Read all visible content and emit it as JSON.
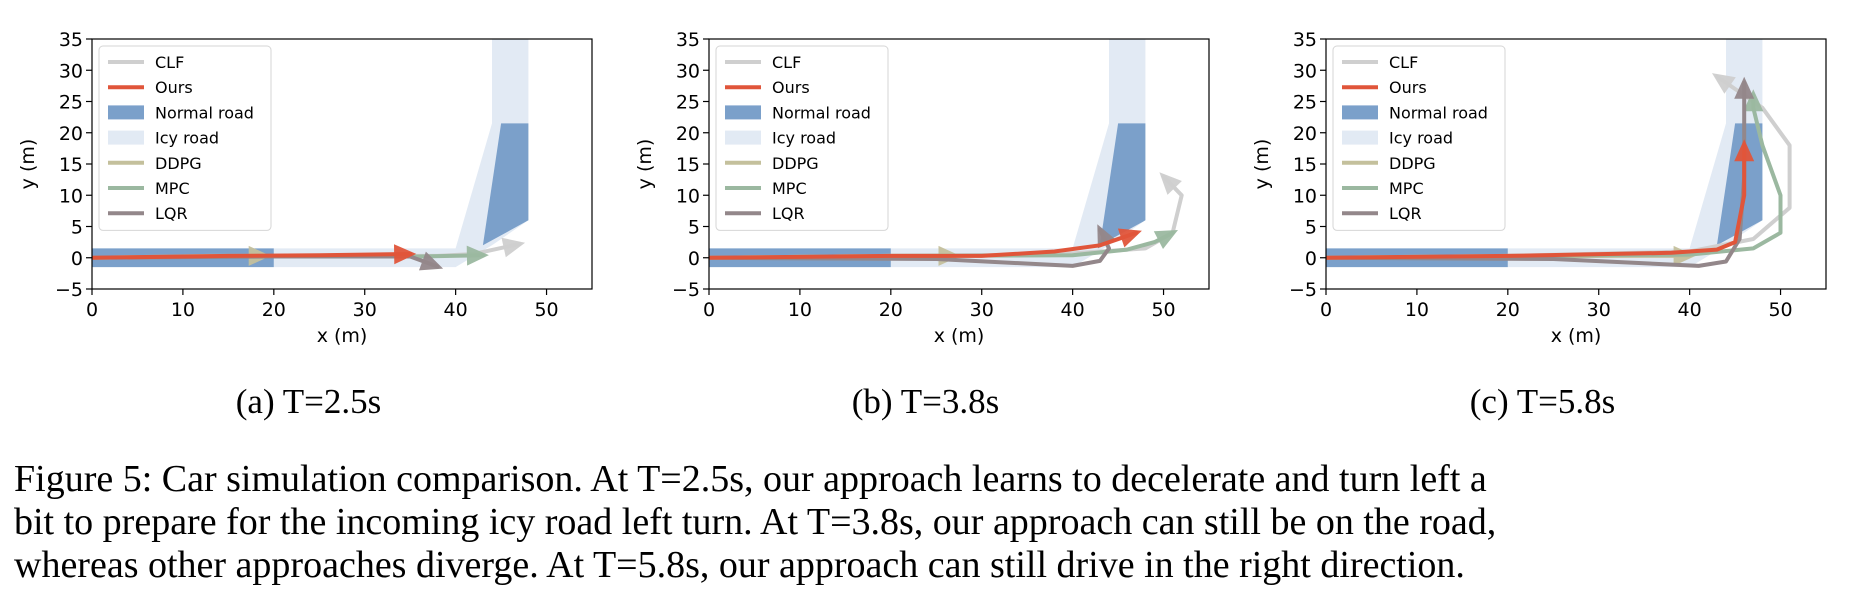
{
  "figure": {
    "caption_lines": [
      "Figure 5: Car simulation comparison. At T=2.5s, our approach learns to decelerate and turn left a",
      "bit to prepare for the incoming icy road left turn. At T=3.8s, our approach can still be on the road,",
      "whereas other approaches diverge. At T=5.8s, our approach can still drive in the right direction."
    ]
  },
  "legend": [
    {
      "label": "CLF",
      "kind": "line",
      "color": "#cfcfcf"
    },
    {
      "label": "Ours",
      "kind": "line",
      "color": "#e0553a"
    },
    {
      "label": "Normal road",
      "kind": "patch",
      "color": "#7ba0ca"
    },
    {
      "label": "Icy road",
      "kind": "patch",
      "color": "#e2eaf4"
    },
    {
      "label": "DDPG",
      "kind": "line",
      "color": "#c4c09c"
    },
    {
      "label": "MPC",
      "kind": "line",
      "color": "#9bb8a0"
    },
    {
      "label": "LQR",
      "kind": "line",
      "color": "#93878a"
    }
  ],
  "chart_data": [
    {
      "type": "line",
      "subcaption": "(a) T=2.5s",
      "xlabel": "x (m)",
      "ylabel": "y (m)",
      "xlim": [
        0,
        55
      ],
      "ylim": [
        -5,
        35
      ],
      "xticks": [
        "0",
        "10",
        "20",
        "30",
        "40",
        "50"
      ],
      "yticks": [
        "−5",
        "0",
        "5",
        "10",
        "15",
        "20",
        "25",
        "30",
        "35"
      ],
      "road": {
        "normal": [
          [
            [
              0,
              -1.5
            ],
            [
              20,
              -1.5
            ],
            [
              20,
              1.5
            ],
            [
              0,
              1.5
            ]
          ],
          [
            [
              43,
              2
            ],
            [
              48,
              6
            ],
            [
              48,
              21.5
            ],
            [
              45,
              21.5
            ]
          ]
        ],
        "icy": [
          [
            [
              20,
              -1.5
            ],
            [
              40,
              -1.5
            ],
            [
              44,
              2
            ],
            [
              48,
              6
            ],
            [
              48,
              35
            ],
            [
              44,
              35
            ],
            [
              44,
              21.5
            ],
            [
              40,
              1.5
            ],
            [
              20,
              1.5
            ]
          ]
        ]
      },
      "series": [
        {
          "name": "CLF",
          "points": [
            [
              0,
              0
            ],
            [
              20,
              0.3
            ],
            [
              38,
              0.3
            ],
            [
              42,
              0.6
            ],
            [
              47,
              2.2
            ]
          ]
        },
        {
          "name": "Ours",
          "points": [
            [
              0,
              0
            ],
            [
              15,
              0.3
            ],
            [
              25,
              0.4
            ],
            [
              35,
              0.6
            ]
          ]
        },
        {
          "name": "DDPG",
          "points": [
            [
              0,
              0
            ],
            [
              13,
              0.3
            ],
            [
              19,
              0.3
            ]
          ]
        },
        {
          "name": "MPC",
          "points": [
            [
              0,
              0
            ],
            [
              20,
              0.3
            ],
            [
              36,
              0.2
            ],
            [
              43,
              0.4
            ]
          ]
        },
        {
          "name": "LQR",
          "points": [
            [
              0,
              0
            ],
            [
              20,
              0.2
            ],
            [
              35,
              0.2
            ],
            [
              38,
              -1.4
            ]
          ]
        }
      ]
    },
    {
      "type": "line",
      "subcaption": "(b) T=3.8s",
      "xlabel": "x (m)",
      "ylabel": "y (m)",
      "xlim": [
        0,
        55
      ],
      "ylim": [
        -5,
        35
      ],
      "xticks": [
        "0",
        "10",
        "20",
        "30",
        "40",
        "50"
      ],
      "yticks": [
        "−5",
        "0",
        "5",
        "10",
        "15",
        "20",
        "25",
        "30",
        "35"
      ],
      "road": {
        "normal": [
          [
            [
              0,
              -1.5
            ],
            [
              20,
              -1.5
            ],
            [
              20,
              1.5
            ],
            [
              0,
              1.5
            ]
          ],
          [
            [
              43,
              2
            ],
            [
              48,
              6
            ],
            [
              48,
              21.5
            ],
            [
              45,
              21.5
            ]
          ]
        ],
        "icy": [
          [
            [
              20,
              -1.5
            ],
            [
              40,
              -1.5
            ],
            [
              44,
              2
            ],
            [
              48,
              6
            ],
            [
              48,
              35
            ],
            [
              44,
              35
            ],
            [
              44,
              21.5
            ],
            [
              40,
              1.5
            ],
            [
              20,
              1.5
            ]
          ]
        ]
      },
      "series": [
        {
          "name": "CLF",
          "points": [
            [
              0,
              0
            ],
            [
              20,
              0.3
            ],
            [
              38,
              0.5
            ],
            [
              48,
              1.5
            ],
            [
              51,
              4
            ],
            [
              52,
              10
            ],
            [
              50,
              13
            ]
          ]
        },
        {
          "name": "Ours",
          "points": [
            [
              0,
              0
            ],
            [
              20,
              0.3
            ],
            [
              30,
              0.3
            ],
            [
              38,
              1
            ],
            [
              43,
              2
            ],
            [
              47,
              4
            ]
          ]
        },
        {
          "name": "DDPG",
          "points": [
            [
              0,
              0
            ],
            [
              20,
              0.3
            ],
            [
              27,
              0.3
            ]
          ]
        },
        {
          "name": "MPC",
          "points": [
            [
              0,
              0
            ],
            [
              20,
              0.3
            ],
            [
              40,
              0.4
            ],
            [
              46,
              1.3
            ],
            [
              49,
              2.5
            ],
            [
              51,
              4
            ]
          ]
        },
        {
          "name": "LQR",
          "points": [
            [
              0,
              0
            ],
            [
              25,
              -0.2
            ],
            [
              40,
              -1.3
            ],
            [
              43,
              -0.5
            ],
            [
              44,
              1.5
            ],
            [
              43,
              4.5
            ]
          ]
        }
      ]
    },
    {
      "type": "line",
      "subcaption": "(c) T=5.8s",
      "xlabel": "x (m)",
      "ylabel": "y (m)",
      "xlim": [
        0,
        55
      ],
      "ylim": [
        -5,
        35
      ],
      "xticks": [
        "0",
        "10",
        "20",
        "30",
        "40",
        "50"
      ],
      "yticks": [
        "−5",
        "0",
        "5",
        "10",
        "15",
        "20",
        "25",
        "30",
        "35"
      ],
      "road": {
        "normal": [
          [
            [
              0,
              -1.5
            ],
            [
              20,
              -1.5
            ],
            [
              20,
              1.5
            ],
            [
              0,
              1.5
            ]
          ],
          [
            [
              43,
              2
            ],
            [
              48,
              6
            ],
            [
              48,
              21.5
            ],
            [
              45,
              21.5
            ]
          ]
        ],
        "icy": [
          [
            [
              20,
              -1.5
            ],
            [
              40,
              -1.5
            ],
            [
              44,
              2
            ],
            [
              48,
              6
            ],
            [
              48,
              35
            ],
            [
              44,
              35
            ],
            [
              44,
              21.5
            ],
            [
              40,
              1.5
            ],
            [
              20,
              1.5
            ]
          ]
        ]
      },
      "series": [
        {
          "name": "CLF",
          "points": [
            [
              0,
              0
            ],
            [
              20,
              0.3
            ],
            [
              40,
              1
            ],
            [
              47,
              3
            ],
            [
              51,
              8
            ],
            [
              51,
              18
            ],
            [
              48,
              24
            ],
            [
              45,
              27
            ],
            [
              43,
              29
            ]
          ]
        },
        {
          "name": "Ours",
          "points": [
            [
              0,
              0
            ],
            [
              20,
              0.3
            ],
            [
              38,
              0.8
            ],
            [
              43,
              1.3
            ],
            [
              45,
              2.5
            ],
            [
              46,
              10
            ],
            [
              46,
              18
            ]
          ]
        },
        {
          "name": "DDPG",
          "points": [
            [
              0,
              0
            ],
            [
              20,
              0.2
            ],
            [
              32,
              0.3
            ],
            [
              40,
              0.3
            ]
          ]
        },
        {
          "name": "MPC",
          "points": [
            [
              0,
              0
            ],
            [
              20,
              0.3
            ],
            [
              40,
              0.5
            ],
            [
              47,
              1.5
            ],
            [
              50,
              4
            ],
            [
              50,
              10
            ],
            [
              48,
              18
            ],
            [
              47,
              24
            ],
            [
              47,
              26
            ]
          ]
        },
        {
          "name": "LQR",
          "points": [
            [
              0,
              0
            ],
            [
              25,
              -0.2
            ],
            [
              41,
              -1.3
            ],
            [
              44,
              -0.6
            ],
            [
              45.5,
              3
            ],
            [
              46,
              13
            ],
            [
              46,
              24
            ],
            [
              46,
              28
            ]
          ]
        }
      ]
    }
  ]
}
